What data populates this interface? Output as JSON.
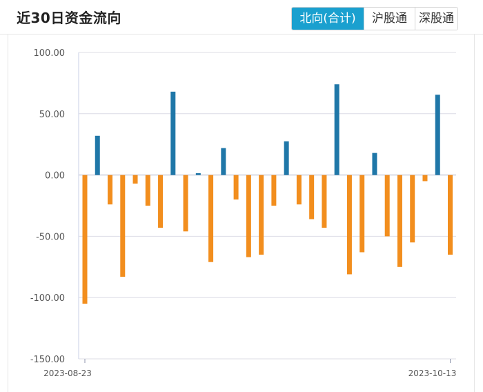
{
  "header": {
    "title": "近30日资金流向",
    "tabs": [
      {
        "label": "北向(合计)",
        "active": true
      },
      {
        "label": "沪股通",
        "active": false
      },
      {
        "label": "深股通",
        "active": false
      }
    ]
  },
  "colors": {
    "positive": "#1f77a8",
    "negative": "#f28e1e",
    "tab_active_bg": "#1aa0cf",
    "grid": "#dcdce6"
  },
  "chart_data": {
    "type": "bar",
    "title": "近30日资金流向",
    "series": [
      {
        "name": "北向(合计)",
        "values": [
          -105,
          32,
          -24,
          -83,
          -7,
          -25,
          -43,
          68,
          -46,
          1.5,
          -71,
          22,
          -20,
          -67,
          -65,
          -25,
          27.5,
          -24,
          -36,
          -43,
          74,
          -81,
          -63,
          18,
          -50,
          -75,
          -55,
          -5,
          65.5,
          -65
        ]
      }
    ],
    "ylim": [
      -150,
      100
    ],
    "yticks": [
      100,
      50,
      0,
      -50,
      -100,
      -150
    ],
    "ytick_labels": [
      "100.00",
      "50.00",
      "0.00",
      "-50.00",
      "-100.00",
      "-150.00"
    ],
    "xlabel_start": "2023-08-23",
    "xlabel_end": "2023-10-13",
    "grid": true
  }
}
